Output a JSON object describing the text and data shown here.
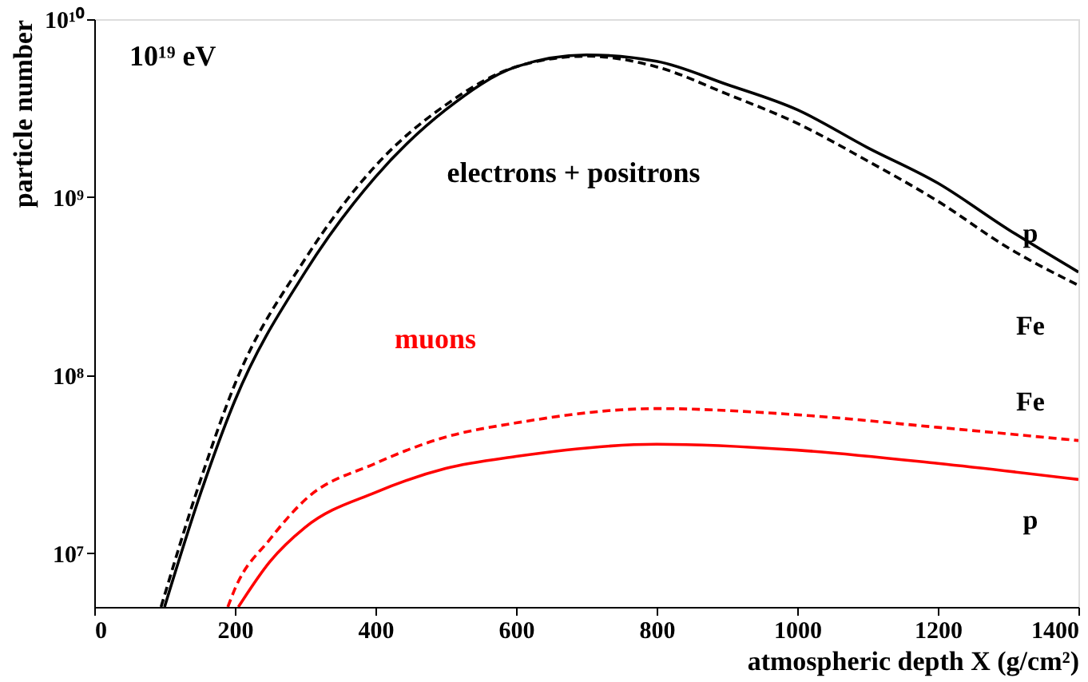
{
  "chart_data": {
    "type": "line",
    "xlabel": "atmospheric depth X (g/cm²)",
    "ylabel": "particle number",
    "log": "y",
    "grid": false,
    "marker": "none",
    "xlim": [
      0,
      1400
    ],
    "xticks": [
      0,
      200,
      400,
      600,
      800,
      1000,
      1200,
      1400
    ],
    "ylim": [
      5000000,
      10000000000
    ],
    "yticks": [
      {
        "value": 10000000,
        "label": "10⁷"
      },
      {
        "value": 100000000,
        "label": "10⁸"
      },
      {
        "value": 1000000000,
        "label": "10⁹"
      },
      {
        "value": 10000000000,
        "label": "10¹⁰"
      }
    ],
    "annotations": [
      "10¹⁹ eV",
      "electrons + positrons",
      "muons"
    ],
    "series": [
      {
        "name": "p",
        "color": "#000000",
        "line_style": "solid",
        "x": [
          100,
          150,
          200,
          300,
          400,
          500,
          600,
          700,
          800,
          900,
          1000,
          1100,
          1200,
          1300,
          1400
        ],
        "values": [
          5000000,
          21000000,
          72000000,
          380000000,
          1300000000,
          3100000000,
          5400000000,
          6300000000,
          5800000000,
          4300000000,
          3100000000,
          1900000000,
          1200000000,
          660000000,
          380000000
        ]
      },
      {
        "name": "Fe",
        "color": "#000000",
        "line_style": "dashed",
        "x": [
          95,
          150,
          200,
          300,
          400,
          500,
          600,
          700,
          800,
          900,
          1000,
          1100,
          1200,
          1300,
          1400
        ],
        "values": [
          5000000,
          25000000,
          89000000,
          450000000,
          1500000000,
          3300000000,
          5400000000,
          6200000000,
          5400000000,
          3800000000,
          2600000000,
          1600000000,
          950000000,
          520000000,
          320000000
        ]
      },
      {
        "name": "Fe",
        "color": "#ff0000",
        "line_style": "dashed",
        "x": [
          190,
          200,
          250,
          300,
          400,
          500,
          600,
          800,
          1000,
          1200,
          1400
        ],
        "values": [
          5000000,
          6300000,
          12000000,
          20000000,
          32000000,
          45000000,
          54000000,
          65000000,
          60000000,
          51000000,
          43000000
        ]
      },
      {
        "name": "p",
        "color": "#ff0000",
        "line_style": "solid",
        "x": [
          205,
          250,
          300,
          400,
          500,
          600,
          800,
          1000,
          1200,
          1400
        ],
        "values": [
          5000000,
          9000000,
          14000000,
          22000000,
          30000000,
          35000000,
          41000000,
          38000000,
          32000000,
          26000000
        ]
      }
    ]
  }
}
